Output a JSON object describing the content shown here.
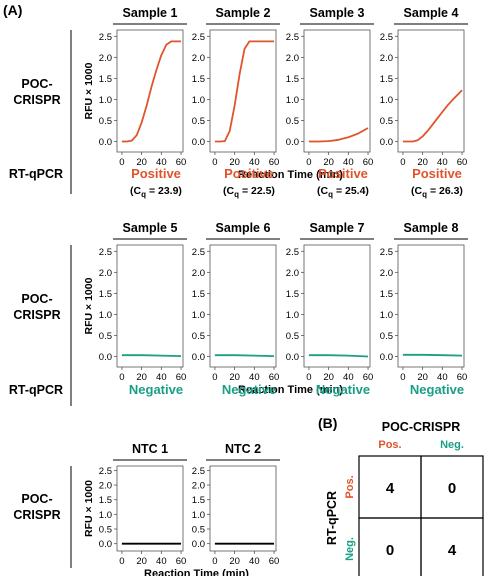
{
  "panel_labels": {
    "a": "(A)",
    "b": "(B)"
  },
  "row_labels": {
    "poc": [
      "POC-",
      "CRISPR"
    ],
    "rtqpcr": "RT-qPCR"
  },
  "axis": {
    "ylabel": "RFU × 1000",
    "xlabel": "Reaction Time (min)",
    "xticks": [
      "0",
      "20",
      "40",
      "60"
    ],
    "yticks": [
      "0.0",
      "0.5",
      "1.0",
      "1.5",
      "2.0",
      "2.5"
    ]
  },
  "rtqpcr_row1": [
    {
      "result": "Positive",
      "cq_prefix": "(C",
      "cq_sub": "q",
      "cq_value": " = 23.9)"
    },
    {
      "result": "Positive",
      "cq_prefix": "(C",
      "cq_sub": "q",
      "cq_value": " = 22.5)"
    },
    {
      "result": "Positive",
      "cq_prefix": "(C",
      "cq_sub": "q",
      "cq_value": " = 25.4)"
    },
    {
      "result": "Positive",
      "cq_prefix": "(C",
      "cq_sub": "q",
      "cq_value": " = 26.3)"
    }
  ],
  "rtqpcr_row2": [
    "Negative",
    "Negative",
    "Negative",
    "Negative"
  ],
  "colors": {
    "positive": "#e0542b",
    "negative": "#1a9e86",
    "ntc": "#000000"
  },
  "chart_data": [
    {
      "type": "line",
      "title": "Sample 1",
      "xlabel": "Reaction Time (min)",
      "ylabel": "RFU × 1000",
      "xlim": [
        -5,
        62
      ],
      "ylim": [
        -0.25,
        2.65
      ],
      "series": [
        {
          "x": [
            0,
            5,
            10,
            15,
            20,
            25,
            30,
            35,
            40,
            45,
            50,
            55,
            60
          ],
          "y": [
            0,
            0,
            0.02,
            0.15,
            0.45,
            0.85,
            1.3,
            1.7,
            2.05,
            2.3,
            2.38,
            2.38,
            2.38
          ]
        }
      ]
    },
    {
      "type": "line",
      "title": "Sample 2",
      "xlabel": "Reaction Time (min)",
      "ylabel": "RFU × 1000",
      "xlim": [
        -5,
        62
      ],
      "ylim": [
        -0.25,
        2.65
      ],
      "series": [
        {
          "x": [
            0,
            5,
            10,
            15,
            20,
            25,
            30,
            35,
            40,
            45,
            50,
            55,
            60
          ],
          "y": [
            0,
            0,
            0.01,
            0.25,
            0.85,
            1.6,
            2.2,
            2.38,
            2.38,
            2.38,
            2.38,
            2.38,
            2.38
          ]
        }
      ]
    },
    {
      "type": "line",
      "title": "Sample 3",
      "xlabel": "Reaction Time (min)",
      "ylabel": "RFU × 1000",
      "xlim": [
        -5,
        62
      ],
      "ylim": [
        -0.25,
        2.65
      ],
      "series": [
        {
          "x": [
            0,
            10,
            20,
            30,
            40,
            50,
            60
          ],
          "y": [
            0,
            0,
            0.01,
            0.04,
            0.1,
            0.19,
            0.32
          ]
        }
      ]
    },
    {
      "type": "line",
      "title": "Sample 4",
      "xlabel": "Reaction Time (min)",
      "ylabel": "RFU × 1000",
      "xlim": [
        -5,
        62
      ],
      "ylim": [
        -0.25,
        2.65
      ],
      "series": [
        {
          "x": [
            0,
            5,
            10,
            15,
            20,
            25,
            30,
            35,
            40,
            45,
            50,
            55,
            60
          ],
          "y": [
            0,
            0,
            0,
            0.03,
            0.12,
            0.25,
            0.4,
            0.55,
            0.7,
            0.85,
            0.98,
            1.1,
            1.22
          ]
        }
      ]
    },
    {
      "type": "line",
      "title": "Sample 5",
      "xlabel": "Reaction Time (min)",
      "ylabel": "RFU × 1000",
      "xlim": [
        -5,
        62
      ],
      "ylim": [
        -0.25,
        2.65
      ],
      "series": [
        {
          "x": [
            0,
            20,
            40,
            60
          ],
          "y": [
            0.03,
            0.03,
            0.02,
            0.01
          ]
        }
      ]
    },
    {
      "type": "line",
      "title": "Sample 6",
      "xlabel": "Reaction Time (min)",
      "ylabel": "RFU × 1000",
      "xlim": [
        -5,
        62
      ],
      "ylim": [
        -0.25,
        2.65
      ],
      "series": [
        {
          "x": [
            0,
            20,
            40,
            60
          ],
          "y": [
            0.03,
            0.03,
            0.02,
            0.01
          ]
        }
      ]
    },
    {
      "type": "line",
      "title": "Sample 7",
      "xlabel": "Reaction Time (min)",
      "ylabel": "RFU × 1000",
      "xlim": [
        -5,
        62
      ],
      "ylim": [
        -0.25,
        2.65
      ],
      "series": [
        {
          "x": [
            0,
            20,
            40,
            60
          ],
          "y": [
            0.03,
            0.03,
            0.02,
            0.0
          ]
        }
      ]
    },
    {
      "type": "line",
      "title": "Sample 8",
      "xlabel": "Reaction Time (min)",
      "ylabel": "RFU × 1000",
      "xlim": [
        -5,
        62
      ],
      "ylim": [
        -0.25,
        2.65
      ],
      "series": [
        {
          "x": [
            0,
            20,
            40,
            60
          ],
          "y": [
            0.04,
            0.04,
            0.03,
            0.02
          ]
        }
      ]
    },
    {
      "type": "line",
      "title": "NTC 1",
      "xlabel": "Reaction Time (min)",
      "ylabel": "RFU × 1000",
      "xlim": [
        -5,
        62
      ],
      "ylim": [
        -0.25,
        2.65
      ],
      "series": [
        {
          "x": [
            0,
            20,
            40,
            60
          ],
          "y": [
            0.0,
            0.0,
            0.0,
            0.0
          ]
        }
      ]
    },
    {
      "type": "line",
      "title": "NTC 2",
      "xlabel": "Reaction Time (min)",
      "ylabel": "RFU × 1000",
      "xlim": [
        -5,
        62
      ],
      "ylim": [
        -0.25,
        2.65
      ],
      "series": [
        {
          "x": [
            0,
            20,
            40,
            60
          ],
          "y": [
            0.0,
            0.0,
            0.0,
            0.0
          ]
        }
      ]
    },
    {
      "type": "table",
      "title": "POC-CRISPR",
      "ylabel": "RT-qPCR",
      "columns": [
        "Pos.",
        "Neg."
      ],
      "rows": [
        "Pos.",
        "Neg."
      ],
      "values": [
        [
          4,
          0
        ],
        [
          0,
          4
        ]
      ]
    }
  ]
}
